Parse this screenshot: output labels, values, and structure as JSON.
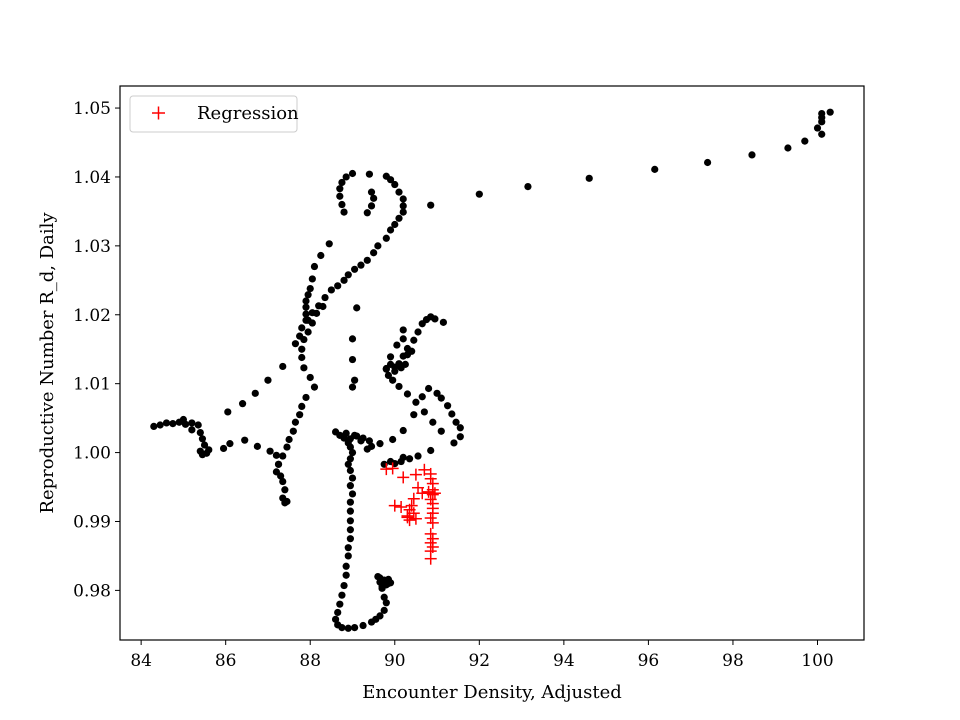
{
  "chart_data": {
    "type": "scatter",
    "title": "",
    "xlabel": "Encounter Density, Adjusted",
    "ylabel": "Reproductive Number R_d, Daily",
    "xlim": [
      83.5,
      101.1
    ],
    "ylim": [
      0.9728,
      1.0532
    ],
    "xticks": [
      84,
      86,
      88,
      90,
      92,
      94,
      96,
      98,
      100
    ],
    "yticks": [
      0.98,
      0.99,
      1.0,
      1.01,
      1.02,
      1.03,
      1.04,
      1.05
    ],
    "xtick_labels": [
      "84",
      "86",
      "88",
      "90",
      "92",
      "94",
      "96",
      "98",
      "100"
    ],
    "ytick_labels": [
      "0.98",
      "0.99",
      "1.00",
      "1.01",
      "1.02",
      "1.03",
      "1.04",
      "1.05"
    ],
    "grid": false,
    "legend": {
      "position": "top-left",
      "entries": [
        {
          "label": "Regression",
          "marker": "+",
          "color": "#ff0000"
        }
      ]
    },
    "series": [
      {
        "marker": "circle",
        "color": "#000000",
        "points": [
          [
            100.3,
            1.0494
          ],
          [
            100.1,
            1.0492
          ],
          [
            100.1,
            1.0486
          ],
          [
            100.1,
            1.048
          ],
          [
            100.0,
            1.0471
          ],
          [
            100.1,
            1.0462
          ],
          [
            99.7,
            1.0452
          ],
          [
            99.3,
            1.0442
          ],
          [
            98.45,
            1.0432
          ],
          [
            97.4,
            1.0421
          ],
          [
            96.15,
            1.0411
          ],
          [
            94.6,
            1.0398
          ],
          [
            93.15,
            1.0386
          ],
          [
            92.0,
            1.0375
          ],
          [
            90.85,
            1.0359
          ],
          [
            89.8,
            1.0401
          ],
          [
            89.9,
            1.0396
          ],
          [
            90.0,
            1.0389
          ],
          [
            90.1,
            1.0378
          ],
          [
            90.2,
            1.0368
          ],
          [
            90.2,
            1.0358
          ],
          [
            90.2,
            1.0349
          ],
          [
            90.1,
            1.034
          ],
          [
            90.0,
            1.0331
          ],
          [
            89.9,
            1.0323
          ],
          [
            89.8,
            1.0311
          ],
          [
            89.6,
            1.03
          ],
          [
            89.5,
            1.029
          ],
          [
            89.35,
            1.0279
          ],
          [
            89.2,
            1.0272
          ],
          [
            89.05,
            1.0266
          ],
          [
            88.9,
            1.0258
          ],
          [
            88.8,
            1.025
          ],
          [
            88.65,
            1.0242
          ],
          [
            88.5,
            1.0236
          ],
          [
            88.35,
            1.0225
          ],
          [
            88.2,
            1.0213
          ],
          [
            88.05,
            1.0203
          ],
          [
            87.9,
            1.0192
          ],
          [
            87.8,
            1.0181
          ],
          [
            87.75,
            1.0169
          ],
          [
            87.65,
            1.0158
          ],
          [
            88.45,
            1.0303
          ],
          [
            88.25,
            1.0286
          ],
          [
            88.1,
            1.027
          ],
          [
            88.05,
            1.0252
          ],
          [
            88.0,
            1.0238
          ],
          [
            87.95,
            1.0229
          ],
          [
            87.9,
            1.022
          ],
          [
            87.9,
            1.0211
          ],
          [
            87.9,
            1.0201
          ],
          [
            87.95,
            1.0192
          ],
          [
            89.4,
            1.0404
          ],
          [
            89.0,
            1.0405
          ],
          [
            88.85,
            1.04
          ],
          [
            88.75,
            1.0392
          ],
          [
            88.7,
            1.0383
          ],
          [
            88.7,
            1.0372
          ],
          [
            88.75,
            1.036
          ],
          [
            88.8,
            1.0349
          ],
          [
            89.45,
            1.0378
          ],
          [
            89.5,
            1.0369
          ],
          [
            89.45,
            1.0358
          ],
          [
            89.35,
            1.0348
          ],
          [
            89.1,
            1.021
          ],
          [
            89.0,
            1.0165
          ],
          [
            89.0,
            1.0135
          ],
          [
            89.05,
            1.0105
          ],
          [
            89.0,
            1.0095
          ],
          [
            88.3,
            1.0212
          ],
          [
            88.15,
            1.0202
          ],
          [
            88.05,
            1.0188
          ],
          [
            87.95,
            1.0175
          ],
          [
            87.85,
            1.0164
          ],
          [
            87.8,
            1.015
          ],
          [
            87.8,
            1.0138
          ],
          [
            87.85,
            1.0123
          ],
          [
            88.0,
            1.0109
          ],
          [
            88.1,
            1.0095
          ],
          [
            87.9,
            1.008
          ],
          [
            87.8,
            1.0067
          ],
          [
            87.75,
            1.0055
          ],
          [
            87.65,
            1.0044
          ],
          [
            87.6,
            1.0031
          ],
          [
            87.5,
            1.0019
          ],
          [
            87.45,
            1.0008
          ],
          [
            87.35,
            0.9995
          ],
          [
            87.25,
            0.9983
          ],
          [
            87.2,
            0.9972
          ],
          [
            87.35,
            1.0125
          ],
          [
            87.0,
            1.0105
          ],
          [
            86.7,
            1.0086
          ],
          [
            86.4,
            1.0071
          ],
          [
            86.05,
            1.0059
          ],
          [
            85.2,
            1.0033
          ],
          [
            85.05,
            1.0041
          ],
          [
            84.9,
            1.0044
          ],
          [
            84.6,
            1.0043
          ],
          [
            84.45,
            1.004
          ],
          [
            84.3,
            1.0038
          ],
          [
            84.75,
            1.0042
          ],
          [
            85.0,
            1.0048
          ],
          [
            85.2,
            1.0043
          ],
          [
            85.35,
            1.004
          ],
          [
            85.4,
            1.0029
          ],
          [
            85.45,
            1.002
          ],
          [
            85.5,
            1.0011
          ],
          [
            85.6,
            1.0004
          ],
          [
            85.55,
            0.9999
          ],
          [
            85.4,
            1.0002
          ],
          [
            85.45,
            0.9997
          ],
          [
            85.95,
            1.0006
          ],
          [
            86.1,
            1.0013
          ],
          [
            86.45,
            1.0018
          ],
          [
            86.75,
            1.0009
          ],
          [
            87.05,
            1.0002
          ],
          [
            87.2,
            0.9996
          ],
          [
            87.25,
            0.9983
          ],
          [
            87.3,
            0.9966
          ],
          [
            87.35,
            0.9958
          ],
          [
            87.4,
            0.9946
          ],
          [
            87.35,
            0.9934
          ],
          [
            87.45,
            0.9929
          ],
          [
            87.4,
            0.9927
          ],
          [
            88.6,
            1.003
          ],
          [
            88.7,
            1.0025
          ],
          [
            88.8,
            1.0021
          ],
          [
            88.9,
            1.0014
          ],
          [
            88.95,
            1.0008
          ],
          [
            89.0,
            1.0
          ],
          [
            88.95,
            0.9991
          ],
          [
            88.9,
            0.9983
          ],
          [
            88.95,
            0.9974
          ],
          [
            89.0,
            0.9963
          ],
          [
            88.95,
            0.9952
          ],
          [
            89.0,
            0.994
          ],
          [
            88.95,
            0.9928
          ],
          [
            88.95,
            0.9915
          ],
          [
            88.95,
            0.9901
          ],
          [
            88.95,
            0.9888
          ],
          [
            88.95,
            0.9875
          ],
          [
            88.9,
            0.9862
          ],
          [
            88.9,
            0.985
          ],
          [
            88.85,
            0.9835
          ],
          [
            88.85,
            0.9822
          ],
          [
            88.8,
            0.9807
          ],
          [
            88.75,
            0.9793
          ],
          [
            88.7,
            0.978
          ],
          [
            88.65,
            0.9768
          ],
          [
            88.6,
            0.9758
          ],
          [
            88.65,
            0.975
          ],
          [
            88.75,
            0.9746
          ],
          [
            88.9,
            0.9745
          ],
          [
            89.05,
            0.9746
          ],
          [
            89.25,
            0.9749
          ],
          [
            89.45,
            0.9754
          ],
          [
            89.55,
            0.9758
          ],
          [
            89.65,
            0.9763
          ],
          [
            89.75,
            0.9771
          ],
          [
            89.8,
            0.9782
          ],
          [
            89.75,
            0.979
          ],
          [
            89.7,
            0.9803
          ],
          [
            89.65,
            0.9812
          ],
          [
            89.6,
            0.982
          ],
          [
            89.65,
            0.9818
          ],
          [
            89.75,
            0.9815
          ],
          [
            89.85,
            0.981
          ],
          [
            89.7,
            0.9806
          ],
          [
            89.8,
            0.9808
          ],
          [
            89.9,
            0.9811
          ],
          [
            89.85,
            0.9816
          ],
          [
            88.85,
            1.0028
          ],
          [
            89.05,
            1.0025
          ],
          [
            89.25,
            1.0021
          ],
          [
            89.4,
            1.0017
          ],
          [
            89.45,
            1.0009
          ],
          [
            89.35,
            1.0005
          ],
          [
            89.2,
            1.0017
          ],
          [
            89.1,
            1.0024
          ],
          [
            88.95,
            1.002
          ],
          [
            89.65,
            1.0013
          ],
          [
            89.95,
            1.0019
          ],
          [
            90.2,
            1.0032
          ],
          [
            90.45,
            1.0055
          ],
          [
            90.65,
            1.0081
          ],
          [
            90.8,
            1.0093
          ],
          [
            91.0,
            1.0086
          ],
          [
            91.1,
            1.0079
          ],
          [
            91.25,
            1.0068
          ],
          [
            91.35,
            1.0056
          ],
          [
            91.45,
            1.0044
          ],
          [
            91.55,
            1.0036
          ],
          [
            91.55,
            1.0023
          ],
          [
            91.4,
            1.0014
          ],
          [
            90.85,
            1.0003
          ],
          [
            90.55,
            0.9995
          ],
          [
            90.35,
            0.9991
          ],
          [
            90.15,
            0.9987
          ],
          [
            90.0,
            0.9984
          ],
          [
            89.75,
            0.9983
          ],
          [
            89.9,
            0.9987
          ],
          [
            90.2,
            0.9993
          ],
          [
            90.0,
            1.0124
          ],
          [
            90.1,
            1.0129
          ],
          [
            90.2,
            1.014
          ],
          [
            90.3,
            1.0151
          ],
          [
            90.45,
            1.0163
          ],
          [
            90.55,
            1.0175
          ],
          [
            90.65,
            1.0187
          ],
          [
            90.75,
            1.0193
          ],
          [
            90.85,
            1.0197
          ],
          [
            90.95,
            1.0194
          ],
          [
            91.15,
            1.0189
          ],
          [
            90.4,
            1.0147
          ],
          [
            90.3,
            1.0142
          ],
          [
            90.2,
            1.0165
          ],
          [
            90.2,
            1.0178
          ],
          [
            90.05,
            1.0156
          ],
          [
            89.9,
            1.0139
          ],
          [
            89.8,
            1.0121
          ],
          [
            89.85,
            1.0112
          ],
          [
            89.95,
            1.0105
          ],
          [
            90.1,
            1.0096
          ],
          [
            90.3,
            1.0085
          ],
          [
            90.5,
            1.0073
          ],
          [
            90.7,
            1.0059
          ],
          [
            90.9,
            1.0044
          ],
          [
            91.1,
            1.0031
          ],
          [
            89.8,
            1.0122
          ],
          [
            89.9,
            1.0128
          ],
          [
            90.0,
            1.0118
          ],
          [
            90.15,
            1.0123
          ],
          [
            90.25,
            1.0128
          ]
        ]
      },
      {
        "name": "Regression",
        "marker": "+",
        "color": "#ff0000",
        "points": [
          [
            89.8,
            0.9976
          ],
          [
            89.95,
            0.9977
          ],
          [
            90.2,
            0.9964
          ],
          [
            90.5,
            0.9968
          ],
          [
            90.7,
            0.9975
          ],
          [
            90.85,
            0.9969
          ],
          [
            90.55,
            0.9949
          ],
          [
            90.65,
            0.9941
          ],
          [
            90.45,
            0.9933
          ],
          [
            90.4,
            0.9923
          ],
          [
            90.35,
            0.9917
          ],
          [
            90.3,
            0.9906
          ],
          [
            90.35,
            0.9902
          ],
          [
            90.45,
            0.9912
          ],
          [
            90.5,
            0.9904
          ],
          [
            90.0,
            0.9923
          ],
          [
            90.15,
            0.9921
          ],
          [
            90.3,
            0.9908
          ],
          [
            90.85,
            0.9962
          ],
          [
            90.9,
            0.9955
          ],
          [
            90.9,
            0.9946
          ],
          [
            90.9,
            0.9939
          ],
          [
            90.85,
            0.9932
          ],
          [
            90.9,
            0.9926
          ],
          [
            90.9,
            0.9919
          ],
          [
            90.9,
            0.9912
          ],
          [
            90.85,
            0.9905
          ],
          [
            90.9,
            0.9898
          ],
          [
            90.85,
            0.9882
          ],
          [
            90.9,
            0.9875
          ],
          [
            90.85,
            0.9869
          ],
          [
            90.9,
            0.9863
          ],
          [
            90.85,
            0.9857
          ],
          [
            90.85,
            0.9846
          ],
          [
            90.8,
            0.9943
          ],
          [
            90.95,
            0.9941
          ]
        ]
      }
    ]
  }
}
